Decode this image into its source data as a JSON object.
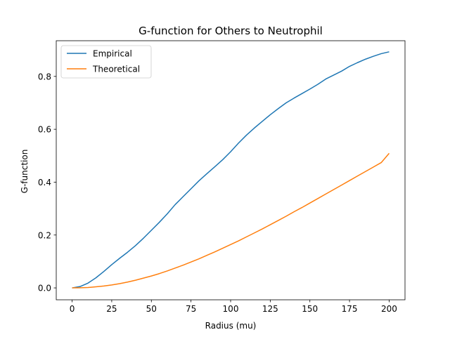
{
  "chart_data": {
    "type": "line",
    "title": "G-function for Others to Neutrophil",
    "xlabel": "Radius (mu)",
    "ylabel": "G-function",
    "xlim": [
      -10,
      210
    ],
    "ylim": [
      -0.045,
      0.935
    ],
    "xticks": [
      0,
      25,
      50,
      75,
      100,
      125,
      150,
      175,
      200
    ],
    "yticks": [
      0.0,
      0.2,
      0.4,
      0.6,
      0.8
    ],
    "ytick_labels": [
      "0.0",
      "0.2",
      "0.4",
      "0.6",
      "0.8"
    ],
    "grid": false,
    "legend_position": "upper left",
    "series": [
      {
        "name": "Empirical",
        "color": "#1f77b4",
        "x": [
          0,
          5,
          10,
          15,
          20,
          25,
          30,
          35,
          40,
          45,
          50,
          55,
          60,
          65,
          70,
          75,
          80,
          85,
          90,
          95,
          100,
          105,
          110,
          115,
          120,
          125,
          130,
          135,
          140,
          145,
          150,
          155,
          160,
          165,
          170,
          175,
          180,
          185,
          190,
          195,
          200
        ],
        "y": [
          0.0,
          0.005,
          0.018,
          0.038,
          0.062,
          0.088,
          0.112,
          0.135,
          0.16,
          0.188,
          0.218,
          0.248,
          0.28,
          0.315,
          0.345,
          0.375,
          0.405,
          0.432,
          0.458,
          0.485,
          0.515,
          0.548,
          0.578,
          0.605,
          0.63,
          0.655,
          0.678,
          0.7,
          0.718,
          0.735,
          0.752,
          0.77,
          0.79,
          0.805,
          0.82,
          0.838,
          0.852,
          0.865,
          0.876,
          0.886,
          0.893
        ]
      },
      {
        "name": "Theoretical",
        "color": "#ff7f0e",
        "x": [
          0,
          5,
          10,
          15,
          20,
          25,
          30,
          35,
          40,
          45,
          50,
          55,
          60,
          65,
          70,
          75,
          80,
          85,
          90,
          95,
          100,
          105,
          110,
          115,
          120,
          125,
          130,
          135,
          140,
          145,
          150,
          155,
          160,
          165,
          170,
          175,
          180,
          185,
          190,
          195,
          200
        ],
        "y": [
          0.0,
          0.0005,
          0.0015,
          0.004,
          0.007,
          0.011,
          0.016,
          0.022,
          0.029,
          0.037,
          0.045,
          0.054,
          0.064,
          0.075,
          0.086,
          0.098,
          0.11,
          0.123,
          0.136,
          0.15,
          0.164,
          0.178,
          0.193,
          0.208,
          0.223,
          0.239,
          0.255,
          0.271,
          0.288,
          0.304,
          0.321,
          0.338,
          0.355,
          0.372,
          0.389,
          0.406,
          0.423,
          0.44,
          0.457,
          0.474,
          0.509
        ]
      }
    ]
  }
}
